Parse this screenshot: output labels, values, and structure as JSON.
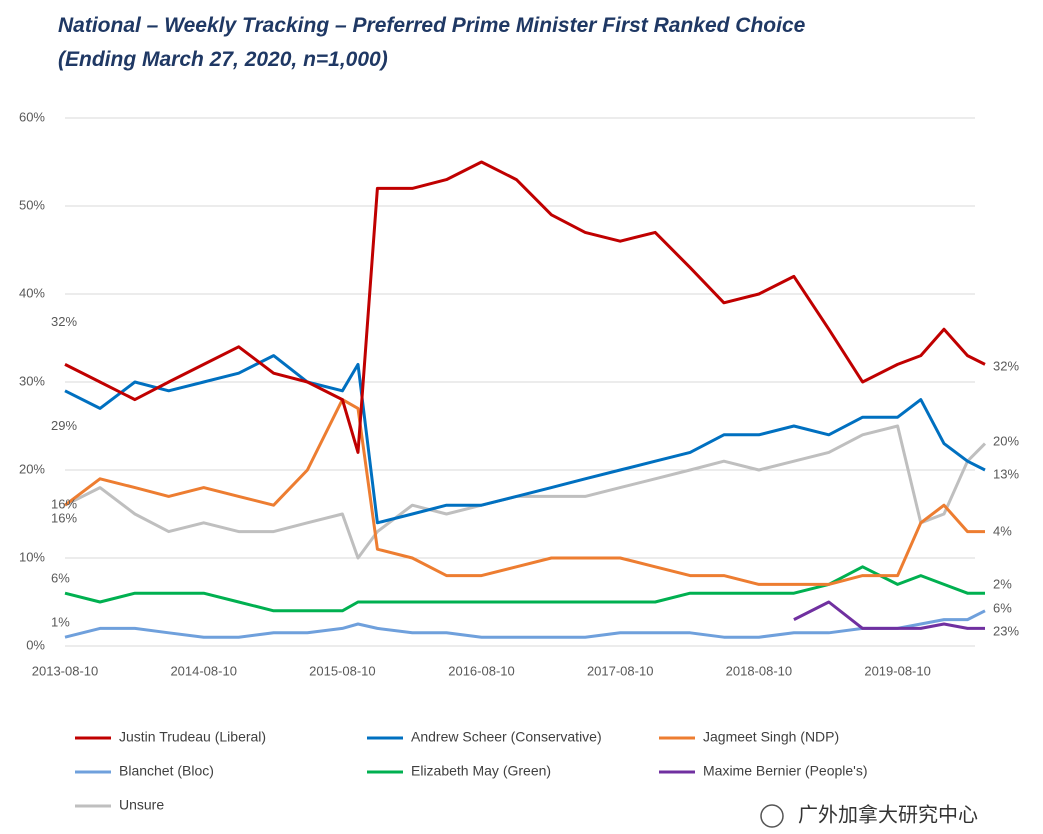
{
  "chart_data": {
    "type": "line",
    "title": "National – Weekly Tracking – Preferred Prime Minister First Ranked Choice",
    "subtitle": "(Ending March 27, 2020, n=1,000)",
    "x": [
      "2013-08-10",
      "2013-11-10",
      "2014-02-10",
      "2014-05-10",
      "2014-08-10",
      "2014-11-10",
      "2015-02-10",
      "2015-05-10",
      "2015-08-10",
      "2015-09-20",
      "2015-11-10",
      "2016-02-10",
      "2016-05-10",
      "2016-08-10",
      "2016-11-10",
      "2017-02-10",
      "2017-05-10",
      "2017-08-10",
      "2017-11-10",
      "2018-02-10",
      "2018-05-10",
      "2018-08-10",
      "2018-11-10",
      "2019-02-10",
      "2019-05-10",
      "2019-08-10",
      "2019-10-10",
      "2019-12-10",
      "2020-02-10",
      "2020-03-27"
    ],
    "xlim": [
      "2013-08-10",
      "2020-03-27"
    ],
    "xticks": [
      "2013-08-10",
      "2014-08-10",
      "2015-08-10",
      "2016-08-10",
      "2017-08-10",
      "2018-08-10",
      "2019-08-10"
    ],
    "ylim": [
      0,
      60
    ],
    "yticks": [
      {
        "value": 0,
        "label": "0%"
      },
      {
        "value": 10,
        "label": "10%"
      },
      {
        "value": 20,
        "label": "20%"
      },
      {
        "value": 30,
        "label": "30%"
      },
      {
        "value": 40,
        "label": "40%"
      },
      {
        "value": 50,
        "label": "50%"
      },
      {
        "value": 60,
        "label": "60%"
      }
    ],
    "grid": true,
    "series": [
      {
        "name": "Justin Trudeau (Liberal)",
        "color": "#c00000",
        "start_label": "32%",
        "end_label": "32%",
        "values": [
          32,
          30,
          28,
          30,
          32,
          34,
          31,
          30,
          28,
          22,
          52,
          52,
          53,
          55,
          53,
          49,
          47,
          46,
          47,
          43,
          39,
          40,
          42,
          36,
          30,
          32,
          33,
          36,
          33,
          32
        ]
      },
      {
        "name": "Andrew Scheer (Conservative)",
        "color": "#0070c0",
        "start_label": "29%",
        "end_label": "20%",
        "values": [
          29,
          27,
          30,
          29,
          30,
          31,
          33,
          30,
          29,
          32,
          14,
          15,
          16,
          16,
          17,
          18,
          19,
          20,
          21,
          22,
          24,
          24,
          25,
          24,
          26,
          26,
          28,
          23,
          21,
          20
        ]
      },
      {
        "name": "Jagmeet Singh (NDP)",
        "color": "#ed7d31",
        "start_label": "16%",
        "end_label": "13%",
        "values": [
          16,
          19,
          18,
          17,
          18,
          17,
          16,
          20,
          28,
          27,
          11,
          10,
          8,
          8,
          9,
          10,
          10,
          10,
          9,
          8,
          8,
          7,
          7,
          7,
          8,
          8,
          14,
          16,
          13,
          13
        ]
      },
      {
        "name": "Blanchet (Bloc)",
        "color": "#6fa0dc",
        "start_label": "1%",
        "end_label": "4%",
        "values": [
          1,
          2,
          2,
          1.5,
          1,
          1,
          1.5,
          1.5,
          2,
          2.5,
          2,
          1.5,
          1.5,
          1,
          1,
          1,
          1,
          1.5,
          1.5,
          1.5,
          1,
          1,
          1.5,
          1.5,
          2,
          2,
          2.5,
          3,
          3,
          4
        ]
      },
      {
        "name": "Elizabeth May (Green)",
        "color": "#00b050",
        "start_label": "6%",
        "end_label": "6%",
        "values": [
          6,
          5,
          6,
          6,
          6,
          5,
          4,
          4,
          4,
          5,
          5,
          5,
          5,
          5,
          5,
          5,
          5,
          5,
          5,
          6,
          6,
          6,
          6,
          7,
          9,
          7,
          8,
          7,
          6,
          6
        ]
      },
      {
        "name": "Maxime Bernier (People's)",
        "color": "#7030a0",
        "end_label": "2%",
        "values": [
          null,
          null,
          null,
          null,
          null,
          null,
          null,
          null,
          null,
          null,
          null,
          null,
          null,
          null,
          null,
          null,
          null,
          null,
          null,
          null,
          null,
          null,
          3,
          5,
          2,
          2,
          2,
          2.5,
          2,
          2
        ]
      },
      {
        "name": "Unsure",
        "color": "#bfbfbf",
        "start_label": "16%",
        "end_label": "23%",
        "values": [
          16,
          18,
          15,
          13,
          14,
          13,
          13,
          14,
          15,
          10,
          13,
          16,
          15,
          16,
          17,
          17,
          17,
          18,
          19,
          20,
          21,
          20,
          21,
          22,
          24,
          25,
          14,
          15,
          21,
          23
        ]
      }
    ],
    "watermark": "广外加拿大研究中心"
  }
}
